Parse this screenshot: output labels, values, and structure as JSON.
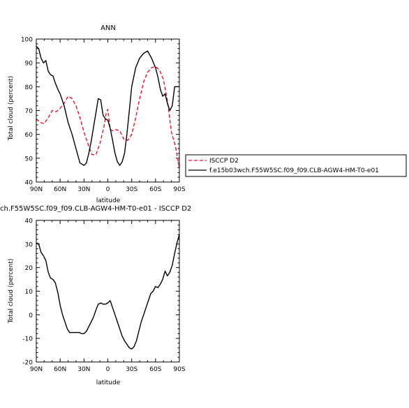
{
  "chart_data": [
    {
      "type": "line",
      "title": "ANN",
      "xlabel": "latitude",
      "ylabel": "Total cloud (percent)",
      "xlim": [
        90,
        -90
      ],
      "ylim": [
        40,
        100
      ],
      "yticks": [
        40,
        50,
        60,
        70,
        80,
        90,
        100
      ],
      "xticks": [
        {
          "value": 90,
          "label": "90N"
        },
        {
          "value": 60,
          "label": "60N"
        },
        {
          "value": 30,
          "label": "30N"
        },
        {
          "value": 0,
          "label": "0"
        },
        {
          "value": -30,
          "label": "30S"
        },
        {
          "value": -60,
          "label": "60S"
        },
        {
          "value": -90,
          "label": "90S"
        }
      ],
      "legend": "right",
      "series": [
        {
          "name": "ISCCP D2",
          "color": "#e8102a",
          "style": "dashed",
          "x": [
            90,
            85,
            80,
            75,
            70,
            65,
            60,
            55,
            50,
            45,
            40,
            35,
            30,
            25,
            20,
            15,
            10,
            5,
            2,
            0,
            -3,
            -6,
            -10,
            -15,
            -20,
            -25,
            -30,
            -35,
            -40,
            -45,
            -50,
            -55,
            -60,
            -65,
            -70,
            -75,
            -80,
            -85,
            -90
          ],
          "y": [
            66.5,
            65,
            64.5,
            67,
            70,
            69.5,
            71,
            73,
            76,
            75,
            72,
            67,
            61,
            56,
            51.5,
            51.5,
            56,
            63,
            69,
            70.5,
            62,
            61.5,
            62,
            61.5,
            58,
            57.5,
            60,
            67,
            75,
            82,
            86,
            88,
            88.5,
            87,
            83,
            74,
            61,
            55,
            46
          ]
        },
        {
          "name": "f.e15b03wch.F55W5SC.f09_f09.CLB-AGW4-HM-T0-e01",
          "color": "#000000",
          "style": "solid",
          "x": [
            90,
            87,
            84,
            81,
            78,
            75,
            72,
            69,
            66,
            63,
            60,
            55,
            50,
            45,
            40,
            35,
            30,
            27,
            24,
            21,
            18,
            15,
            12,
            9,
            6,
            3,
            0,
            -3,
            -6,
            -9,
            -12,
            -15,
            -18,
            -21,
            -24,
            -27,
            -30,
            -35,
            -40,
            -45,
            -50,
            -55,
            -60,
            -63,
            -66,
            -69,
            -72,
            -75,
            -78,
            -81,
            -84,
            -87,
            -90
          ],
          "y": [
            97,
            96,
            92,
            90,
            91,
            86.5,
            85,
            84.5,
            81.5,
            79,
            77,
            72,
            65,
            60,
            54,
            48,
            47,
            48,
            52,
            57,
            63,
            69,
            75,
            74.5,
            68,
            66.5,
            66,
            62.5,
            57.5,
            52,
            48.5,
            47,
            48.5,
            52,
            60,
            70,
            80,
            88,
            92,
            94,
            95,
            92,
            88,
            84,
            79,
            76,
            77,
            73,
            70,
            72,
            80,
            80,
            80
          ]
        }
      ]
    },
    {
      "type": "line",
      "title": "ch.F55W5SC.f09_f09.CLB-AGW4-HM-T0-e01 - ISCCP D2",
      "xlabel": "latitude",
      "ylabel": "Total cloud (percent)",
      "xlim": [
        90,
        -90
      ],
      "ylim": [
        -20,
        40
      ],
      "yticks": [
        -20,
        -10,
        0,
        10,
        20,
        30,
        40
      ],
      "xticks": [
        {
          "value": 90,
          "label": "90N"
        },
        {
          "value": 60,
          "label": "60N"
        },
        {
          "value": 30,
          "label": "30N"
        },
        {
          "value": 0,
          "label": "0"
        },
        {
          "value": -30,
          "label": "30S"
        },
        {
          "value": -60,
          "label": "60S"
        },
        {
          "value": -90,
          "label": "90S"
        }
      ],
      "series": [
        {
          "color": "#000000",
          "style": "solid",
          "x": [
            90,
            87,
            84,
            81,
            78,
            75,
            72,
            69,
            66,
            63,
            60,
            57,
            54,
            51,
            48,
            45,
            42,
            39,
            36,
            33,
            30,
            27,
            24,
            21,
            18,
            15,
            12,
            9,
            6,
            3,
            0,
            -3,
            -6,
            -9,
            -12,
            -15,
            -18,
            -21,
            -24,
            -27,
            -30,
            -33,
            -36,
            -39,
            -42,
            -45,
            -48,
            -51,
            -54,
            -57,
            -60,
            -63,
            -66,
            -69,
            -72,
            -75,
            -78,
            -81,
            -84,
            -87,
            -90
          ],
          "y": [
            30.5,
            30,
            26.5,
            25,
            23,
            18,
            15.5,
            15,
            13.5,
            9.5,
            4,
            0,
            -3,
            -6,
            -7.5,
            -7.5,
            -7.5,
            -7.5,
            -7.5,
            -8,
            -8,
            -7,
            -5,
            -3,
            -1,
            2,
            4.5,
            5,
            4.5,
            4.5,
            5,
            6,
            3,
            0,
            -3,
            -6,
            -9,
            -11,
            -12.5,
            -14,
            -14.5,
            -13.5,
            -11,
            -7,
            -3,
            0,
            3,
            6,
            9,
            10,
            12,
            11.5,
            13,
            15,
            18.5,
            16.5,
            18,
            21,
            26,
            30.5,
            34
          ]
        }
      ]
    }
  ]
}
